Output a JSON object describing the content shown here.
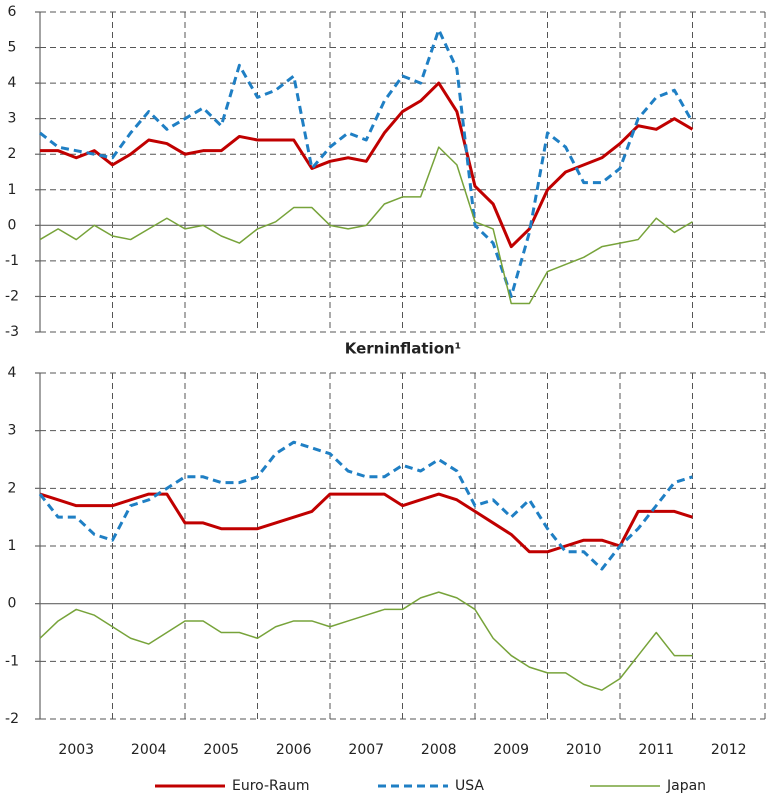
{
  "chart_data": [
    {
      "type": "line",
      "x": [
        2003,
        2003.25,
        2003.5,
        2003.75,
        2004,
        2004.25,
        2004.5,
        2004.75,
        2005,
        2005.25,
        2005.5,
        2005.75,
        2006,
        2006.25,
        2006.5,
        2006.75,
        2007,
        2007.25,
        2007.5,
        2007.75,
        2008,
        2008.25,
        2008.5,
        2008.75,
        2009,
        2009.25,
        2009.5,
        2009.75,
        2010,
        2010.25,
        2010.5,
        2010.75,
        2011,
        2011.25,
        2011.5,
        2011.75,
        2012
      ],
      "series": [
        {
          "name": "Euro-Raum",
          "color": "#c00000",
          "style": "solid",
          "width": 3,
          "values": [
            2.1,
            2.1,
            1.9,
            2.1,
            1.7,
            2.0,
            2.4,
            2.3,
            2.0,
            2.1,
            2.1,
            2.5,
            2.4,
            2.4,
            2.4,
            1.6,
            1.8,
            1.9,
            1.8,
            2.6,
            3.2,
            3.5,
            4.0,
            3.2,
            1.1,
            0.6,
            -0.6,
            -0.1,
            1.0,
            1.5,
            1.7,
            1.9,
            2.3,
            2.8,
            2.7,
            3.0,
            2.7
          ]
        },
        {
          "name": "USA",
          "color": "#1f7fc4",
          "style": "dashed",
          "width": 3,
          "values": [
            2.6,
            2.2,
            2.1,
            2.0,
            1.9,
            2.6,
            3.2,
            2.7,
            3.0,
            3.3,
            2.8,
            4.5,
            3.6,
            3.8,
            4.2,
            1.6,
            2.2,
            2.6,
            2.4,
            3.5,
            4.2,
            4.0,
            5.5,
            4.4,
            0.0,
            -0.5,
            -2.0,
            -0.2,
            2.6,
            2.2,
            1.2,
            1.2,
            1.6,
            3.0,
            3.6,
            3.8,
            2.9
          ]
        },
        {
          "name": "Japan",
          "color": "#77a33a",
          "style": "solid",
          "width": 1.5,
          "values": [
            -0.4,
            -0.1,
            -0.4,
            0.0,
            -0.3,
            -0.4,
            -0.1,
            0.2,
            -0.1,
            0.0,
            -0.3,
            -0.5,
            -0.1,
            0.1,
            0.5,
            0.5,
            0.0,
            -0.1,
            0.0,
            0.6,
            0.8,
            0.8,
            2.2,
            1.7,
            0.1,
            -0.1,
            -2.2,
            -2.2,
            -1.3,
            -1.1,
            -0.9,
            -0.6,
            -0.5,
            -0.4,
            0.2,
            -0.2,
            0.1
          ]
        }
      ],
      "xlim": [
        2003,
        2013
      ],
      "ylim": [
        -3,
        6
      ],
      "yticks": [
        -3,
        -2,
        -1,
        0,
        1,
        2,
        3,
        4,
        5,
        6
      ],
      "grid": true
    },
    {
      "type": "line",
      "title": "Kerninflation¹",
      "x": [
        2003,
        2003.25,
        2003.5,
        2003.75,
        2004,
        2004.25,
        2004.5,
        2004.75,
        2005,
        2005.25,
        2005.5,
        2005.75,
        2006,
        2006.25,
        2006.5,
        2006.75,
        2007,
        2007.25,
        2007.5,
        2007.75,
        2008,
        2008.25,
        2008.5,
        2008.75,
        2009,
        2009.25,
        2009.5,
        2009.75,
        2010,
        2010.25,
        2010.5,
        2010.75,
        2011,
        2011.25,
        2011.5,
        2011.75,
        2012
      ],
      "categories": [
        "2003",
        "2004",
        "2005",
        "2006",
        "2007",
        "2008",
        "2009",
        "2010",
        "2011",
        "2012"
      ],
      "series": [
        {
          "color": "#c00000",
          "style": "solid",
          "width": 3,
          "values": [
            1.9,
            1.8,
            1.7,
            1.7,
            1.7,
            1.8,
            1.9,
            1.9,
            1.4,
            1.4,
            1.3,
            1.3,
            1.3,
            1.4,
            1.5,
            1.6,
            1.9,
            1.9,
            1.9,
            1.9,
            1.7,
            1.8,
            1.9,
            1.8,
            1.6,
            1.4,
            1.2,
            0.9,
            0.9,
            1.0,
            1.1,
            1.1,
            1.0,
            1.6,
            1.6,
            1.6,
            1.5
          ]
        },
        {
          "color": "#1f7fc4",
          "style": "dashed",
          "width": 3,
          "values": [
            1.9,
            1.5,
            1.5,
            1.2,
            1.1,
            1.7,
            1.8,
            2.0,
            2.2,
            2.2,
            2.1,
            2.1,
            2.2,
            2.6,
            2.8,
            2.7,
            2.6,
            2.3,
            2.2,
            2.2,
            2.4,
            2.3,
            2.5,
            2.3,
            1.7,
            1.8,
            1.5,
            1.8,
            1.3,
            0.9,
            0.9,
            0.6,
            1.0,
            1.3,
            1.7,
            2.1,
            2.2
          ]
        },
        {
          "color": "#77a33a",
          "style": "solid",
          "width": 1.5,
          "values": [
            -0.6,
            -0.3,
            -0.1,
            -0.2,
            -0.4,
            -0.6,
            -0.7,
            -0.5,
            -0.3,
            -0.3,
            -0.5,
            -0.5,
            -0.6,
            -0.4,
            -0.3,
            -0.3,
            -0.4,
            -0.3,
            -0.2,
            -0.1,
            -0.1,
            0.1,
            0.2,
            0.1,
            -0.1,
            -0.6,
            -0.9,
            -1.1,
            -1.2,
            -1.2,
            -1.4,
            -1.5,
            -1.3,
            -0.9,
            -0.5,
            -0.9,
            -0.9
          ]
        }
      ],
      "xlim": [
        2003,
        2013
      ],
      "ylim": [
        -2,
        4
      ],
      "yticks": [
        -2,
        -1,
        0,
        1,
        2,
        3,
        4
      ],
      "grid": true
    }
  ]
}
